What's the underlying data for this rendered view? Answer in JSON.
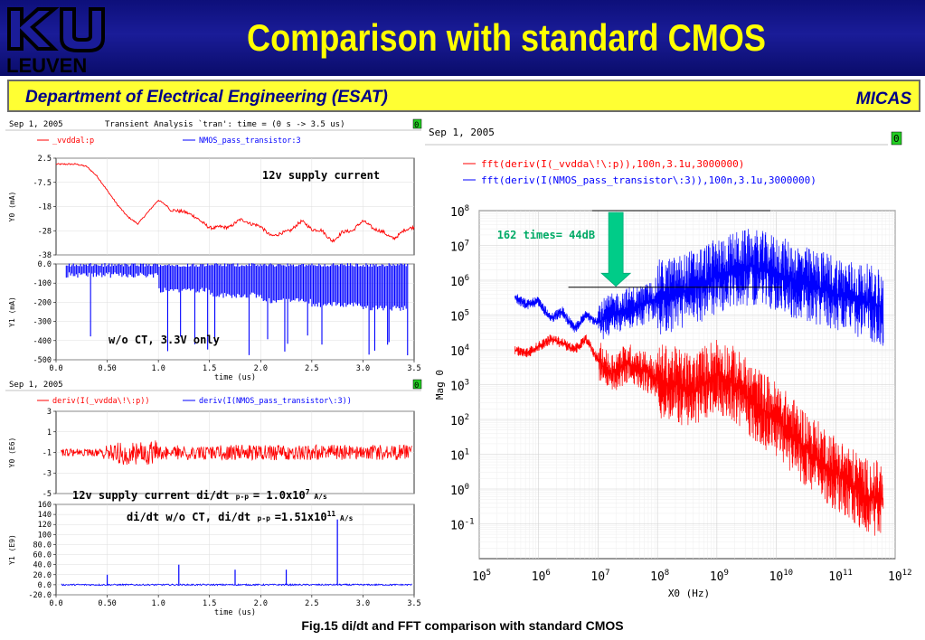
{
  "header": {
    "title": "Comparison with standard CMOS",
    "logo_text": "LEUVEN",
    "logo_letters": "KU",
    "department": "Department of Electrical Engineering (ESAT)",
    "group": "MICAS",
    "colors": {
      "header_blue": "#12148a",
      "title_yellow": "#ffff00",
      "band_yellow": "#ffff33",
      "dept_blue": "#000088"
    }
  },
  "caption": "Fig.15  di/dt and FFT comparison with standard CMOS",
  "chart_data": [
    {
      "type": "line",
      "date": "Sep 1, 2005",
      "title": "Transient Analysis `tran': time = (0 s -> 3.5 us)",
      "marker": "0",
      "legend": [
        "_vvddal:p",
        "NMOS_pass_transistor:3"
      ],
      "series_colors": [
        "#ff0000",
        "#0000ff"
      ],
      "xlabel": "time (us)",
      "x_ticks": [
        "0.0",
        "0.50",
        "1.0",
        "1.5",
        "2.0",
        "2.5",
        "3.0",
        "3.5"
      ],
      "panels": [
        {
          "series": "_vvddal:p",
          "ylabel": "Y0 (mA)",
          "ylim": [
            -38,
            2.5
          ],
          "y_ticks": [
            "2.5",
            "-7.5",
            "-18",
            "-28",
            "-38"
          ],
          "annotation": "12v supply current",
          "x": [
            0,
            0.1,
            0.2,
            0.3,
            0.4,
            0.5,
            0.6,
            0.7,
            0.8,
            0.9,
            1.0,
            1.1,
            1.2,
            1.3,
            1.4,
            1.5,
            1.6,
            1.7,
            1.8,
            1.9,
            2.0,
            2.1,
            2.2,
            2.3,
            2.4,
            2.5,
            2.6,
            2.7,
            2.8,
            2.9,
            3.0,
            3.1,
            3.2,
            3.3,
            3.4,
            3.5
          ],
          "values": [
            0,
            0,
            0,
            -1,
            -5,
            -11,
            -17,
            -22,
            -25,
            -20,
            -15,
            -18,
            -21,
            -23,
            -24,
            -25,
            -24,
            -26,
            -25,
            -27,
            -26,
            -28,
            -27,
            -28,
            -26,
            -29,
            -27,
            -30,
            -27,
            -29,
            -26,
            -28,
            -27,
            -29,
            -27,
            -28
          ]
        },
        {
          "series": "NMOS_pass_transistor:3",
          "ylabel": "Y1 (mA)",
          "ylim": [
            -500,
            20
          ],
          "y_ticks": [
            "0.0",
            "-100",
            "-200",
            "-300",
            "-400",
            "-500"
          ],
          "annotation": "w/o CT, 3.3V only",
          "band_top": 0,
          "band_bottom": [
            -40,
            -40,
            -120,
            -150,
            -180,
            -200,
            -220,
            -240
          ],
          "spike_min": -480
        }
      ]
    },
    {
      "type": "line",
      "date": "Sep 1, 2005",
      "marker": "0",
      "legend": [
        "deriv(I(_vvdda\\!\\:p))",
        "deriv(I(NMOS_pass_transistor\\:3))"
      ],
      "series_colors": [
        "#ff0000",
        "#0000ff"
      ],
      "xlabel": "time (us)",
      "x_ticks": [
        "0.0",
        "0.50",
        "1.0",
        "1.5",
        "2.0",
        "2.5",
        "3.0",
        "3.5"
      ],
      "panels": [
        {
          "series": "deriv(I(_vvdda\\!\\:p))",
          "ylabel": "Y0 (E6)",
          "ylim": [
            -5,
            3
          ],
          "y_ticks": [
            "3",
            "1",
            "-1",
            "-3",
            "-5"
          ],
          "annotation": "12v supply current  di/dt",
          "annotation_sub": "p-p",
          "annotation_value": "= 1.0x10",
          "annotation_exp": "7",
          "annotation_unit": "A/s"
        },
        {
          "series": "deriv(I(NMOS_pass_transistor\\:3))",
          "ylabel": "Y1 (E9)",
          "ylim": [
            -20,
            160
          ],
          "y_ticks": [
            "160",
            "140",
            "120",
            "100",
            "80.0",
            "60.0",
            "40.0",
            "20.0",
            "0.0",
            "-20.0"
          ],
          "annotation": "di/dt  w/o CT, di/dt",
          "annotation_sub": "p-p",
          "annotation_value": "=1.51x10",
          "annotation_exp": "11",
          "annotation_unit": "A/s",
          "spikes": [
            {
              "x": 0.5,
              "y": 20
            },
            {
              "x": 1.2,
              "y": 40
            },
            {
              "x": 1.75,
              "y": 30
            },
            {
              "x": 2.25,
              "y": 30
            },
            {
              "x": 2.75,
              "y": 130
            }
          ]
        }
      ]
    },
    {
      "type": "line",
      "date": "Sep 1, 2005",
      "marker": "0",
      "legend": [
        "fft(deriv(I(_vvdda\\!\\:p)),100n,3.1u,3000000)",
        "fft(deriv(I(NMOS_pass_transistor\\:3)),100n,3.1u,3000000)"
      ],
      "series_colors": [
        "#ff0000",
        "#0000ff"
      ],
      "xlabel": "X0 (Hz)",
      "ylabel": "Mag 0",
      "x_scale": "log",
      "y_scale": "log",
      "xlim_exp": [
        5,
        12
      ],
      "ylim_exp": [
        -2,
        8
      ],
      "x_tick_exps": [
        "5",
        "6",
        "7",
        "8",
        "9",
        "10",
        "11",
        "12"
      ],
      "y_tick_exps": [
        "8",
        "7",
        "6",
        "5",
        "4",
        "3",
        "2",
        "1",
        "0",
        "-1"
      ],
      "tick_base": "10",
      "annotation": "162 times= 44dB",
      "reference_lines_exp": [
        8,
        5.8
      ],
      "series": [
        {
          "name": "fft(deriv(I(_vvdda\\!\\:p)),100n,3.1u,3000000)",
          "x_exp": [
            5.6,
            5.8,
            6.0,
            6.2,
            6.4,
            6.6,
            6.8,
            7.0,
            7.2,
            7.5,
            7.8,
            8.0,
            8.3,
            8.6,
            9.0,
            9.3,
            9.6,
            10.0,
            10.3,
            10.6,
            10.9,
            11.2,
            11.5,
            11.8
          ],
          "y_exp": [
            4.0,
            3.9,
            4.1,
            4.3,
            4.2,
            4.0,
            4.3,
            3.7,
            3.3,
            3.6,
            3.4,
            3.1,
            3.0,
            2.8,
            3.3,
            3.0,
            2.5,
            2.0,
            1.5,
            1.0,
            0.6,
            0.2,
            -0.2,
            -0.3
          ]
        },
        {
          "name": "fft(deriv(I(NMOS_pass_transistor\\:3)),100n,3.1u,3000000)",
          "x_exp": [
            5.6,
            5.8,
            6.0,
            6.2,
            6.4,
            6.6,
            6.8,
            7.0,
            7.2,
            7.5,
            7.8,
            8.0,
            8.3,
            8.6,
            9.0,
            9.3,
            9.6,
            10.0,
            10.3,
            10.6,
            10.9,
            11.2,
            11.5,
            11.8
          ],
          "y_exp": [
            5.5,
            5.3,
            5.4,
            4.9,
            5.1,
            4.6,
            5.0,
            4.8,
            5.0,
            5.2,
            5.3,
            5.5,
            5.6,
            5.8,
            6.1,
            6.3,
            6.4,
            6.2,
            6.0,
            5.8,
            5.7,
            5.5,
            5.4,
            5.2
          ]
        }
      ]
    }
  ]
}
